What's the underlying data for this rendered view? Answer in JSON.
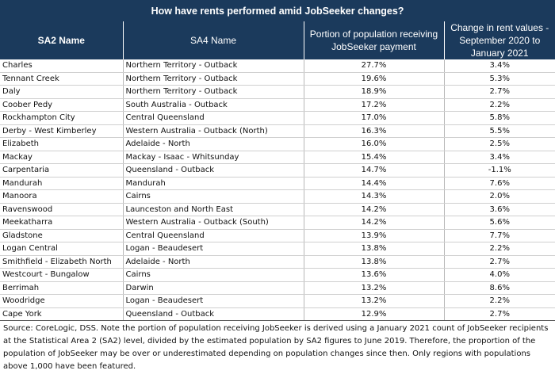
{
  "chart_data": {
    "type": "table",
    "title": "How have rents performed amid JobSeeker changes?",
    "columns": [
      "SA2 Name",
      "SA4 Name",
      "Portion of population receiving JobSeeker payment",
      "Change in rent values - September 2020 to January 2021"
    ],
    "rows": [
      [
        "Charles",
        "Northern Territory - Outback",
        "27.7%",
        "3.4%"
      ],
      [
        "Tennant Creek",
        "Northern Territory - Outback",
        "19.6%",
        "5.3%"
      ],
      [
        "Daly",
        "Northern Territory - Outback",
        "18.9%",
        "2.7%"
      ],
      [
        "Coober Pedy",
        "South Australia - Outback",
        "17.2%",
        "2.2%"
      ],
      [
        "Rockhampton City",
        "Central Queensland",
        "17.0%",
        "5.8%"
      ],
      [
        "Derby - West Kimberley",
        "Western Australia - Outback (North)",
        "16.3%",
        "5.5%"
      ],
      [
        "Elizabeth",
        "Adelaide - North",
        "16.0%",
        "2.5%"
      ],
      [
        "Mackay",
        "Mackay - Isaac - Whitsunday",
        "15.4%",
        "3.4%"
      ],
      [
        "Carpentaria",
        "Queensland - Outback",
        "14.7%",
        "-1.1%"
      ],
      [
        "Mandurah",
        "Mandurah",
        "14.4%",
        "7.6%"
      ],
      [
        "Manoora",
        "Cairns",
        "14.3%",
        "2.0%"
      ],
      [
        "Ravenswood",
        "Launceston and North East",
        "14.2%",
        "3.6%"
      ],
      [
        "Meekatharra",
        "Western Australia - Outback (South)",
        "14.2%",
        "5.6%"
      ],
      [
        "Gladstone",
        "Central Queensland",
        "13.9%",
        "7.7%"
      ],
      [
        "Logan Central",
        "Logan - Beaudesert",
        "13.8%",
        "2.2%"
      ],
      [
        "Smithfield - Elizabeth North",
        "Adelaide - North",
        "13.8%",
        "2.7%"
      ],
      [
        "Westcourt - Bungalow",
        "Cairns",
        "13.6%",
        "4.0%"
      ],
      [
        "Berrimah",
        "Darwin",
        "13.2%",
        "8.6%"
      ],
      [
        "Woodridge",
        "Logan - Beaudesert",
        "13.2%",
        "2.2%"
      ],
      [
        "Cape York",
        "Queensland - Outback",
        "12.9%",
        "2.7%"
      ]
    ],
    "note": "Source: CoreLogic, DSS. Note the portion of population receiving JobSeeker is derived using a January 2021 count of JobSeeker recipients at the Statistical Area 2 (SA2) level, divided by the estimated population by SA2 figures to June 2019. Therefore, the proportion of the population of JobSeeker may be over or underestimated depending on population changes since then. Only regions with populations above 1,000 have been featured."
  }
}
